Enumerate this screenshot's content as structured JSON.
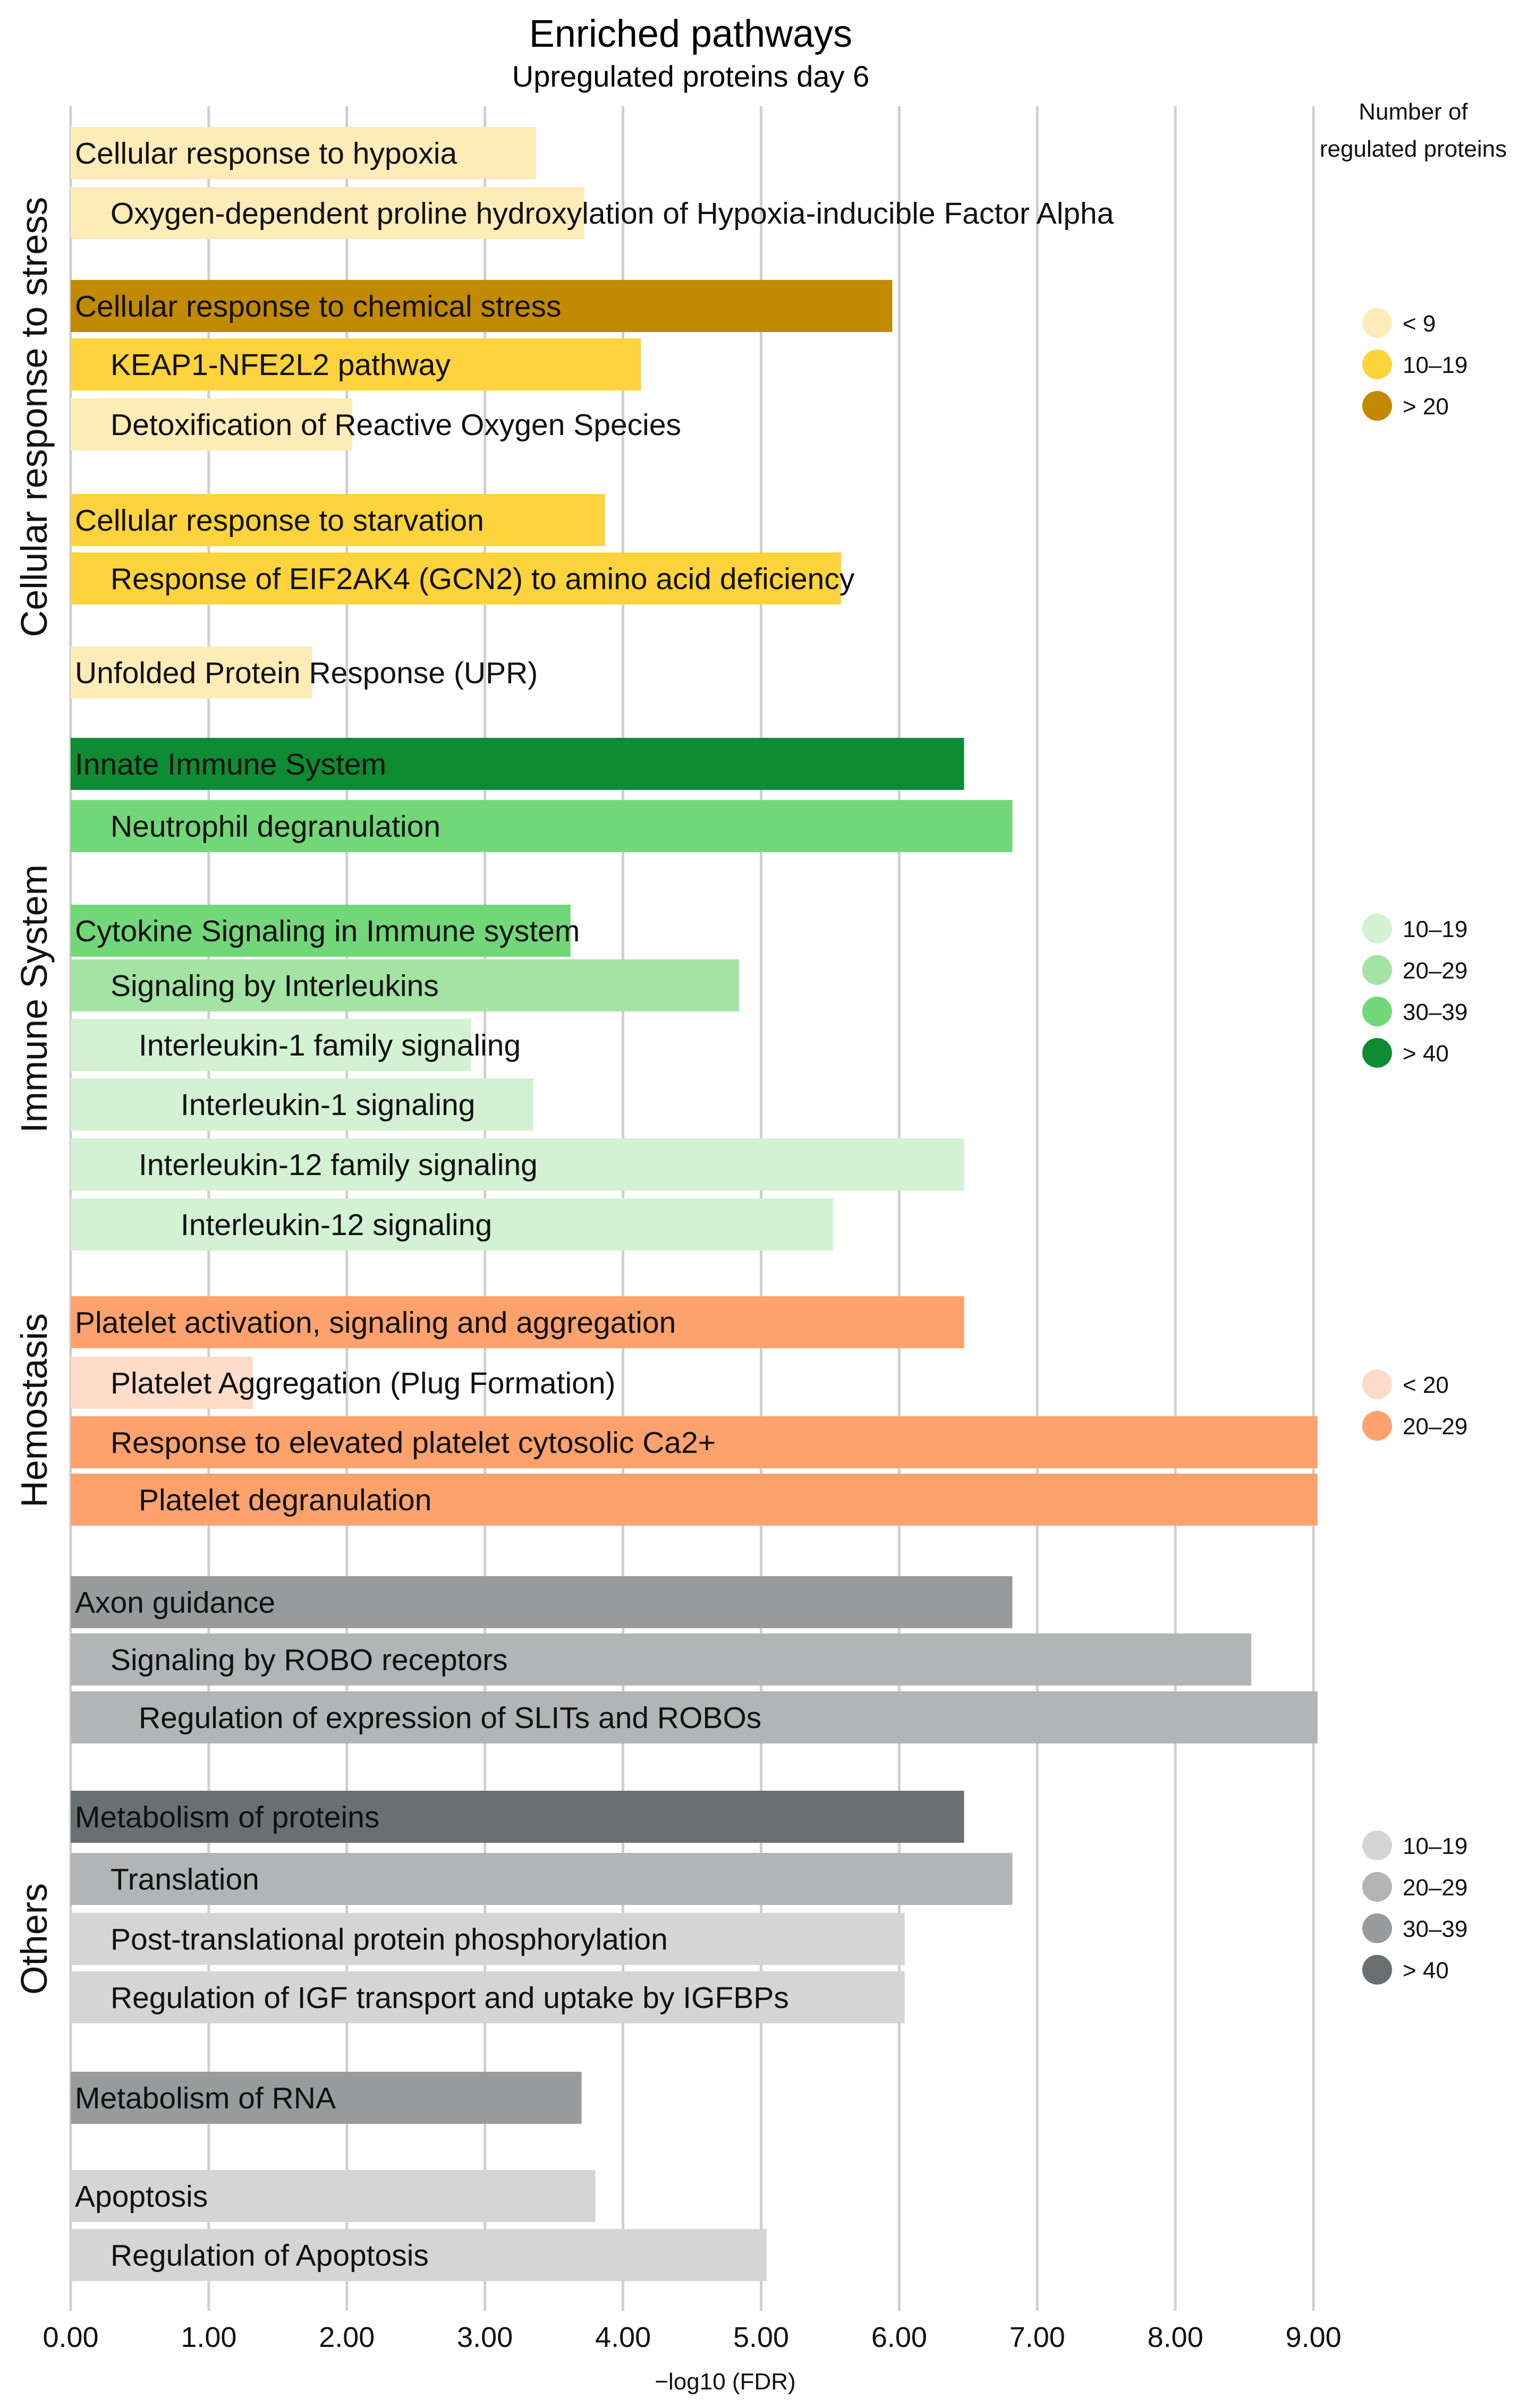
{
  "chart_data": {
    "type": "bar",
    "orientation": "horizontal",
    "title": "Enriched pathways",
    "subtitle": "Upregulated proteins day 6",
    "xlabel": "−log10 (FDR)",
    "xlim": [
      0,
      9.6
    ],
    "xticks": [
      "0.00",
      "1.00",
      "2.00",
      "3.00",
      "4.00",
      "5.00",
      "6.00",
      "7.00",
      "8.00",
      "9.00"
    ],
    "grid": true,
    "legend_title": [
      "Number of",
      "regulated proteins"
    ],
    "groups": [
      {
        "name": "Cellular response to stress",
        "items": [
          {
            "label": "Cellular response to hypoxia",
            "value": 3.37,
            "level": 0,
            "color": "#FDEBB8"
          },
          {
            "label": "Oxygen-dependent proline hydroxylation of Hypoxia-inducible Factor Alpha",
            "value": 3.72,
            "level": 1,
            "color": "#FDEBB8"
          },
          {
            "label": "Cellular response to chemical stress",
            "value": 5.95,
            "level": 0,
            "color": "#C28A02"
          },
          {
            "label": "KEAP1-NFE2L2 pathway",
            "value": 4.13,
            "level": 1,
            "color": "#FED33C"
          },
          {
            "label": "Detoxification of Reactive Oxygen Species",
            "value": 2.04,
            "level": 1,
            "color": "#FDEBB8"
          },
          {
            "label": "Cellular response to starvation",
            "value": 3.87,
            "level": 0,
            "color": "#FED33C"
          },
          {
            "label": "Response of EIF2AK4 (GCN2) to amino acid deficiency",
            "value": 5.58,
            "level": 1,
            "color": "#FED33C"
          },
          {
            "label": "Unfolded Protein Response (UPR)",
            "value": 1.75,
            "level": 0,
            "color": "#FDEBB8"
          }
        ]
      },
      {
        "name": "Immune System",
        "items": [
          {
            "label": "Innate Immune System",
            "value": 6.47,
            "level": 0,
            "color": "#0E8C33"
          },
          {
            "label": "Neutrophil degranulation",
            "value": 6.82,
            "level": 1,
            "color": "#72D779"
          },
          {
            "label": "Cytokine Signaling in Immune system",
            "value": 3.62,
            "level": 0,
            "color": "#72D779"
          },
          {
            "label": "Signaling by Interleukins",
            "value": 4.84,
            "level": 1,
            "color": "#A3E3A3"
          },
          {
            "label": "Interleukin-1 family signaling",
            "value": 2.9,
            "level": 2,
            "color": "#D3F1D3"
          },
          {
            "label": "Interleukin-1 signaling",
            "value": 3.35,
            "level": 3,
            "color": "#D3F1D3"
          },
          {
            "label": "Interleukin-12 family signaling",
            "value": 6.47,
            "level": 2,
            "color": "#D3F1D3"
          },
          {
            "label": "Interleukin-12 signaling",
            "value": 5.52,
            "level": 3,
            "color": "#D3F1D3"
          }
        ]
      },
      {
        "name": "Hemostasis",
        "items": [
          {
            "label": "Platelet activation, signaling and aggregation",
            "value": 6.47,
            "level": 0,
            "color": "#FEA26D"
          },
          {
            "label": "Platelet Aggregation (Plug Formation)",
            "value": 1.32,
            "level": 1,
            "color": "#FEDCC9"
          },
          {
            "label": "Response to elevated platelet cytosolic Ca2+",
            "value": 9.03,
            "level": 1,
            "color": "#FEA26D"
          },
          {
            "label": "Platelet degranulation",
            "value": 9.03,
            "level": 2,
            "color": "#FEA26D"
          }
        ]
      },
      {
        "name": "Others",
        "items": [
          {
            "label": "Axon guidance",
            "value": 6.82,
            "level": 0,
            "color": "#989A9B"
          },
          {
            "label": "Signaling by ROBO receptors",
            "value": 8.55,
            "level": 1,
            "color": "#B2B4B5"
          },
          {
            "label": "Regulation of expression of SLITs and ROBOs",
            "value": 9.03,
            "level": 2,
            "color": "#B2B4B5"
          },
          {
            "label": "Metabolism of proteins",
            "value": 6.47,
            "level": 0,
            "color": "#6A7071"
          },
          {
            "label": "Translation",
            "value": 6.82,
            "level": 1,
            "color": "#B2B4B5"
          },
          {
            "label": "Post-translational protein phosphorylation",
            "value": 6.04,
            "level": 1,
            "color": "#D4D5D4"
          },
          {
            "label": "Regulation of IGF transport and uptake by IGFBPs",
            "value": 6.04,
            "level": 1,
            "color": "#D4D5D4"
          },
          {
            "label": "Metabolism of RNA",
            "value": 3.7,
            "level": 0,
            "color": "#989A9B"
          },
          {
            "label": "Apoptosis",
            "value": 3.8,
            "level": 0,
            "color": "#D4D5D4"
          },
          {
            "label": "Regulation of Apoptosis",
            "value": 5.04,
            "level": 1,
            "color": "#D4D5D4"
          }
        ]
      }
    ],
    "legends": [
      {
        "group": "Cellular response to stress",
        "entries": [
          {
            "label": "< 9",
            "color": "#FDEBB8"
          },
          {
            "label": "10–19",
            "color": "#FED33C"
          },
          {
            "label": "> 20",
            "color": "#C28A02"
          }
        ]
      },
      {
        "group": "Immune System",
        "entries": [
          {
            "label": "10–19",
            "color": "#D3F1D3"
          },
          {
            "label": "20–29",
            "color": "#A3E3A3"
          },
          {
            "label": "30–39",
            "color": "#72D779"
          },
          {
            "label": "> 40",
            "color": "#0E8C33"
          }
        ]
      },
      {
        "group": "Hemostasis",
        "entries": [
          {
            "label": "< 20",
            "color": "#FEDCC9"
          },
          {
            "label": "20–29",
            "color": "#FEA26D"
          }
        ]
      },
      {
        "group": "Others",
        "entries": [
          {
            "label": "10–19",
            "color": "#D4D5D4"
          },
          {
            "label": "20–29",
            "color": "#B2B4B5"
          },
          {
            "label": "30–39",
            "color": "#989A9B"
          },
          {
            "label": "> 40",
            "color": "#6A7071"
          }
        ]
      }
    ]
  }
}
